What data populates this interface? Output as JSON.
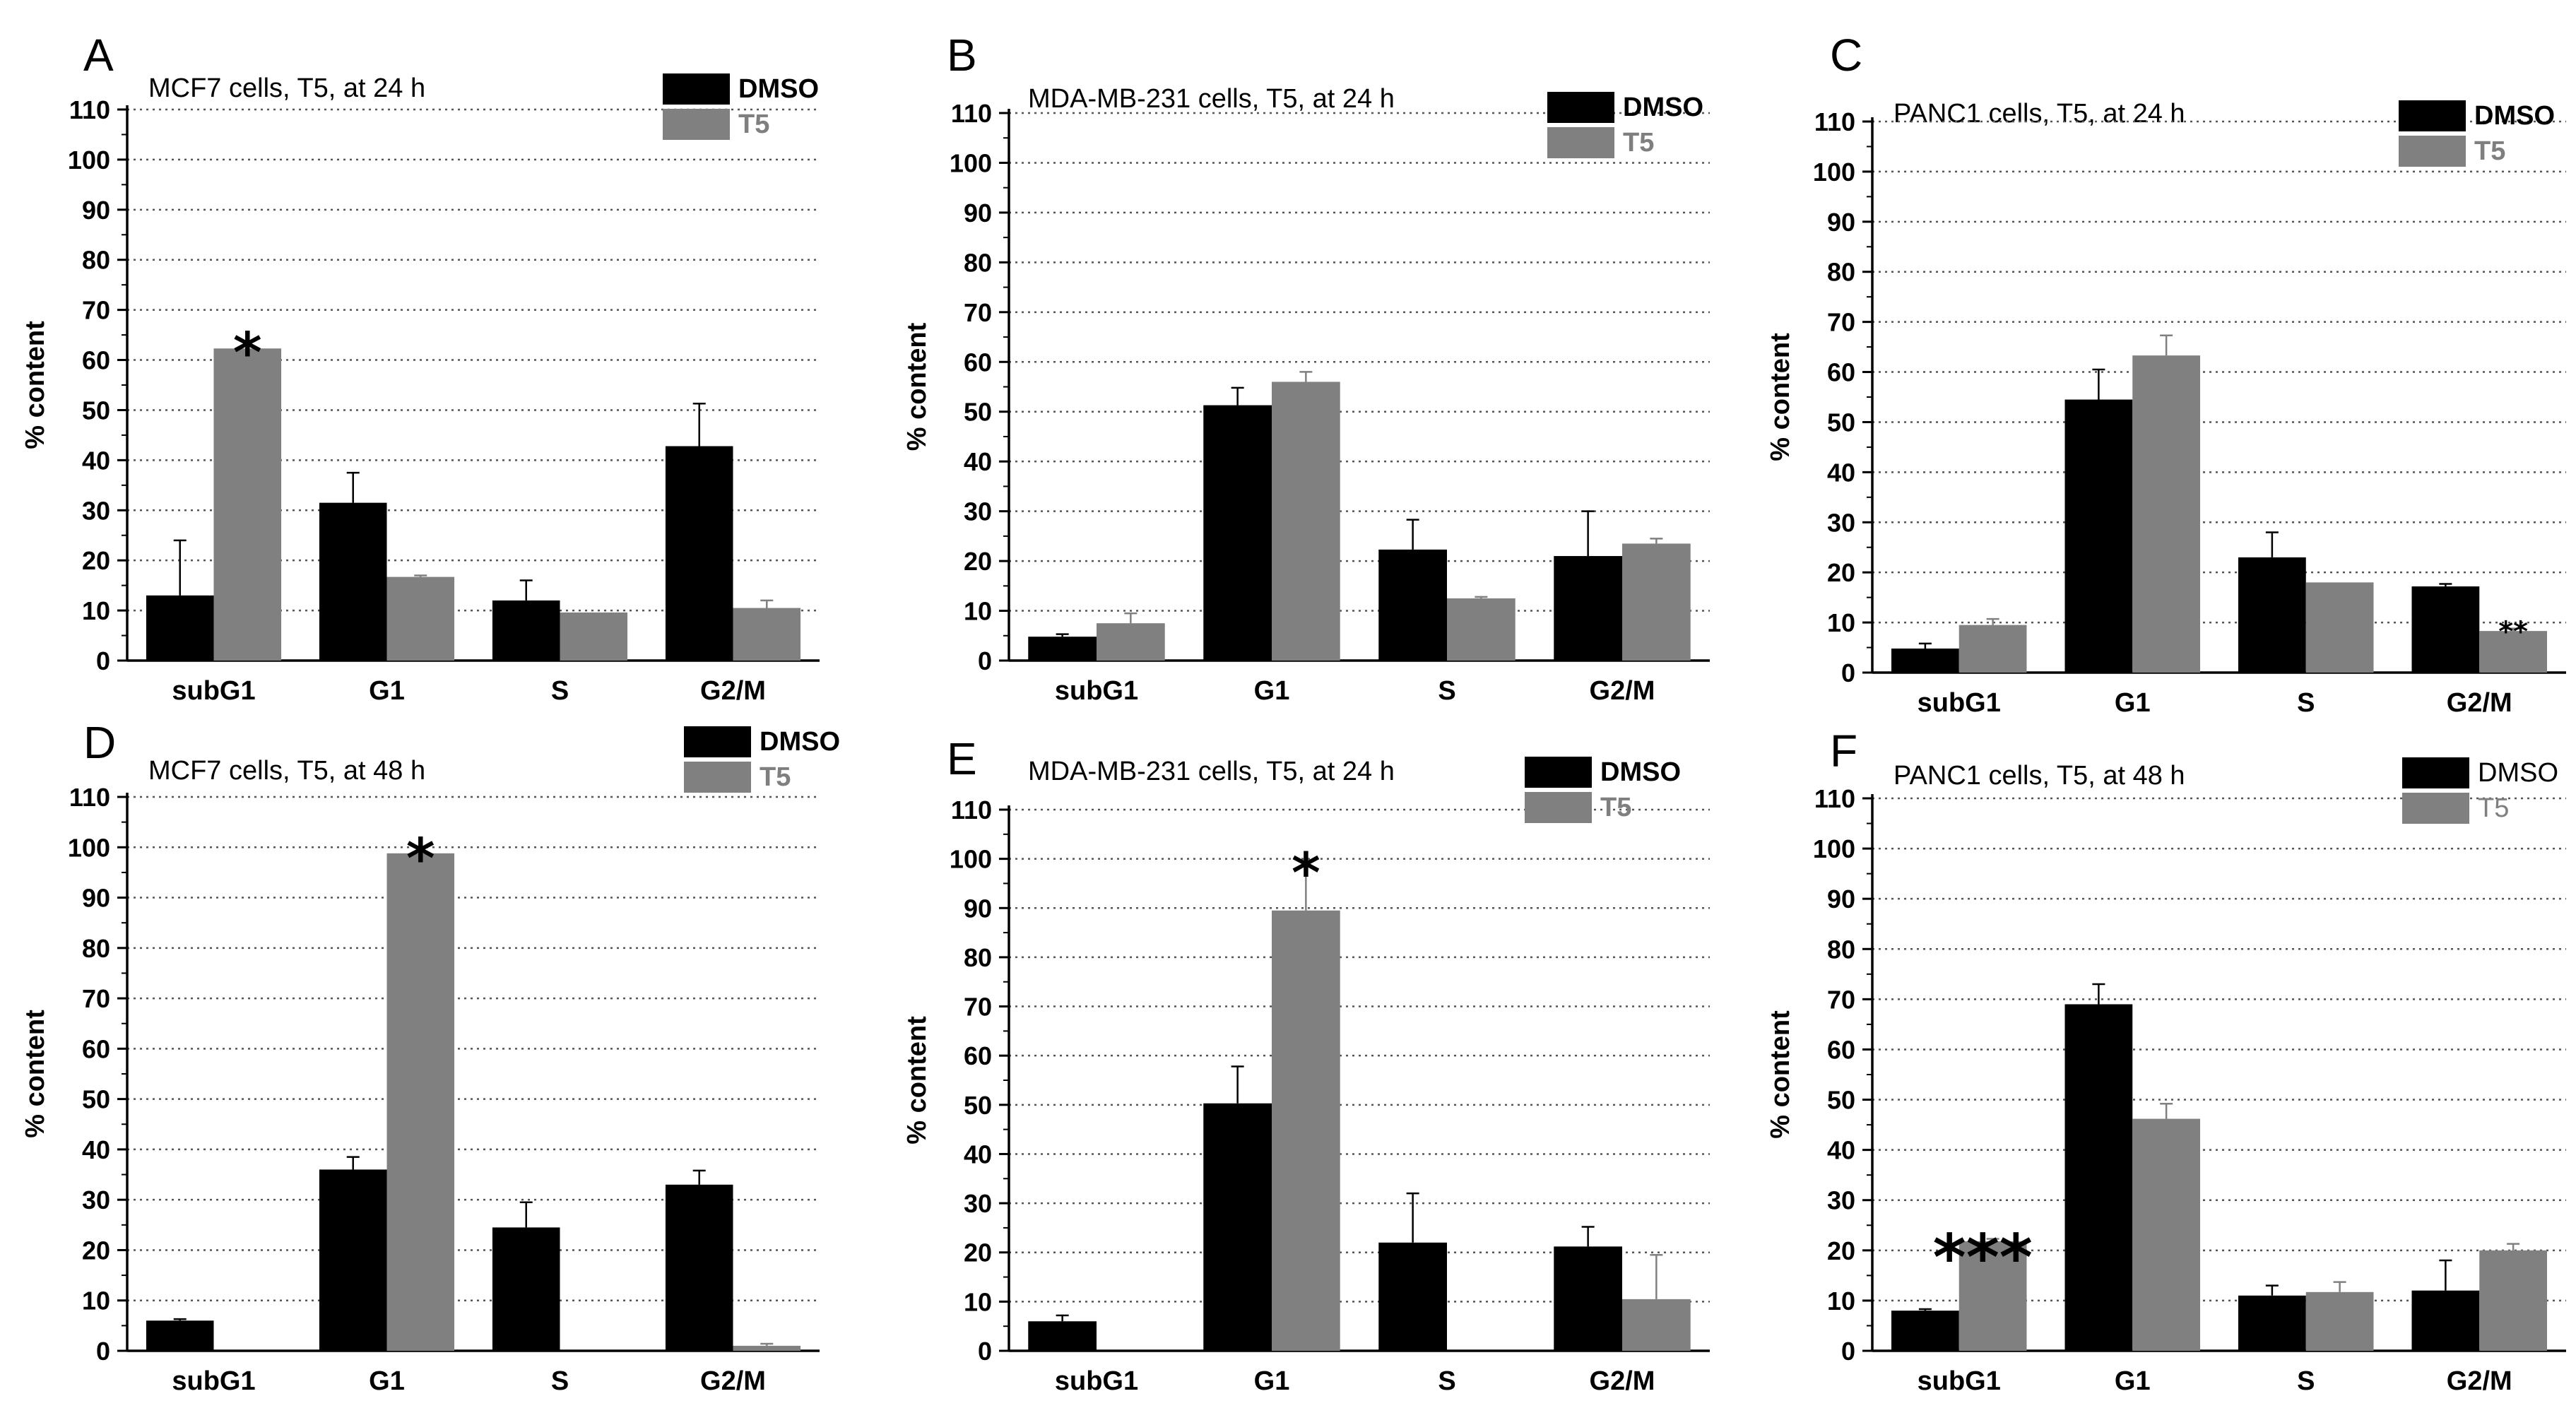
{
  "colors": {
    "dmso": "#000000",
    "t5": "#808080",
    "t5_text": "#7f7f7f",
    "grid": "#555555"
  },
  "chart_data": [
    {
      "panel": "A",
      "type": "bar",
      "title": "MCF7 cells, T5, at 24 h",
      "categories": [
        "subG1",
        "G1",
        "S",
        "G2/M"
      ],
      "ylabel": "% content",
      "ylim": [
        0,
        110
      ],
      "yticks": [
        "0",
        "10",
        "20",
        "30",
        "40",
        "50",
        "60",
        "70",
        "80",
        "90",
        "100",
        "110"
      ],
      "legend": [
        "DMSO",
        "T5"
      ],
      "legend_bold": true,
      "legend_position": "top-right",
      "series": [
        {
          "name": "DMSO",
          "values": [
            13,
            31.5,
            12,
            42.8
          ],
          "errors": [
            11,
            6,
            4,
            8.5
          ]
        },
        {
          "name": "T5",
          "values": [
            62.3,
            16.7,
            9.6,
            10.5
          ],
          "errors": [
            0.5,
            0.3,
            0,
            1.5
          ]
        }
      ],
      "annotations": [
        {
          "text": "*",
          "category": "subG1",
          "series": "T5"
        }
      ]
    },
    {
      "panel": "B",
      "type": "bar",
      "title": "MDA-MB-231 cells, T5, at 24 h",
      "categories": [
        "subG1",
        "G1",
        "S",
        "G2/M"
      ],
      "ylabel": "% content",
      "ylim": [
        0,
        110
      ],
      "yticks": [
        "0",
        "10",
        "20",
        "30",
        "40",
        "50",
        "60",
        "70",
        "80",
        "90",
        "100",
        "110"
      ],
      "legend": [
        "DMSO",
        "T5"
      ],
      "legend_bold": true,
      "legend_position": "top-right",
      "series": [
        {
          "name": "DMSO",
          "values": [
            4.8,
            51.3,
            22.3,
            21
          ],
          "errors": [
            0.5,
            3.5,
            6,
            9
          ]
        },
        {
          "name": "T5",
          "values": [
            7.5,
            56,
            12.5,
            23.5
          ],
          "errors": [
            2,
            2,
            0.3,
            1
          ]
        }
      ],
      "annotations": []
    },
    {
      "panel": "C",
      "type": "bar",
      "title": "PANC1 cells, T5, at 24 h",
      "categories": [
        "subG1",
        "G1",
        "S",
        "G2/M"
      ],
      "ylabel": "% content",
      "ylim": [
        0,
        110
      ],
      "yticks": [
        "0",
        "10",
        "20",
        "30",
        "40",
        "50",
        "60",
        "70",
        "80",
        "90",
        "100",
        "110"
      ],
      "legend": [
        "DMSO",
        "T5"
      ],
      "legend_bold": true,
      "legend_position": "top-right",
      "series": [
        {
          "name": "DMSO",
          "values": [
            4.8,
            54.5,
            23,
            17.2
          ],
          "errors": [
            1,
            6,
            5,
            0.5
          ]
        },
        {
          "name": "T5",
          "values": [
            9.5,
            63.3,
            18,
            8.3
          ],
          "errors": [
            1.2,
            4,
            0,
            0.5
          ]
        }
      ],
      "annotations": [
        {
          "text": "**",
          "category": "G2/M",
          "series": "T5"
        }
      ]
    },
    {
      "panel": "D",
      "type": "bar",
      "title": "MCF7 cells, T5, at 48 h",
      "categories": [
        "subG1",
        "G1",
        "S",
        "G2/M"
      ],
      "ylabel": "% content",
      "ylim": [
        0,
        110
      ],
      "yticks": [
        "0",
        "10",
        "20",
        "30",
        "40",
        "50",
        "60",
        "70",
        "80",
        "90",
        "100",
        "110"
      ],
      "legend": [
        "DMSO",
        "T5"
      ],
      "legend_bold": true,
      "legend_position": "top-right",
      "series": [
        {
          "name": "DMSO",
          "values": [
            6,
            36,
            24.5,
            33
          ],
          "errors": [
            0.3,
            2.5,
            5,
            2.8
          ]
        },
        {
          "name": "T5",
          "values": [
            0,
            98.8,
            0,
            1
          ],
          "errors": [
            0,
            0.3,
            0,
            0.4
          ]
        }
      ],
      "annotations": [
        {
          "text": "*",
          "category": "G1",
          "series": "T5"
        }
      ]
    },
    {
      "panel": "E",
      "type": "bar",
      "title": "MDA-MB-231 cells, T5, at 24 h",
      "categories": [
        "subG1",
        "G1",
        "S",
        "G2/M"
      ],
      "ylabel": "% content",
      "ylim": [
        0,
        110
      ],
      "yticks": [
        "0",
        "10",
        "20",
        "30",
        "40",
        "50",
        "60",
        "70",
        "80",
        "90",
        "100",
        "110"
      ],
      "legend": [
        "DMSO",
        "T5"
      ],
      "legend_bold": true,
      "legend_position": "top-right",
      "series": [
        {
          "name": "DMSO",
          "values": [
            6,
            50.3,
            22,
            21.2
          ],
          "errors": [
            1.2,
            7.5,
            10,
            4
          ]
        },
        {
          "name": "T5",
          "values": [
            0,
            89.5,
            0,
            10.5
          ],
          "errors": [
            0,
            9,
            0,
            9
          ]
        }
      ],
      "annotations": [
        {
          "text": "*",
          "category": "G1",
          "series": "T5"
        }
      ]
    },
    {
      "panel": "F",
      "type": "bar",
      "title": "PANC1 cells, T5, at 48 h",
      "categories": [
        "subG1",
        "G1",
        "S",
        "G2/M"
      ],
      "ylabel": "% content",
      "ylim": [
        0,
        110
      ],
      "yticks": [
        "0",
        "10",
        "20",
        "30",
        "40",
        "50",
        "60",
        "70",
        "80",
        "90",
        "100",
        "110"
      ],
      "legend": [
        "DMSO",
        "T5"
      ],
      "legend_bold": false,
      "legend_position": "top-right",
      "series": [
        {
          "name": "DMSO",
          "values": [
            8,
            69,
            11,
            12
          ],
          "errors": [
            0.3,
            4,
            2,
            6
          ]
        },
        {
          "name": "T5",
          "values": [
            21.8,
            46.2,
            11.7,
            20
          ],
          "errors": [
            0.5,
            3,
            2,
            1.3
          ]
        }
      ],
      "annotations": [
        {
          "text": "***",
          "category": "subG1",
          "series": "T5"
        }
      ]
    }
  ]
}
